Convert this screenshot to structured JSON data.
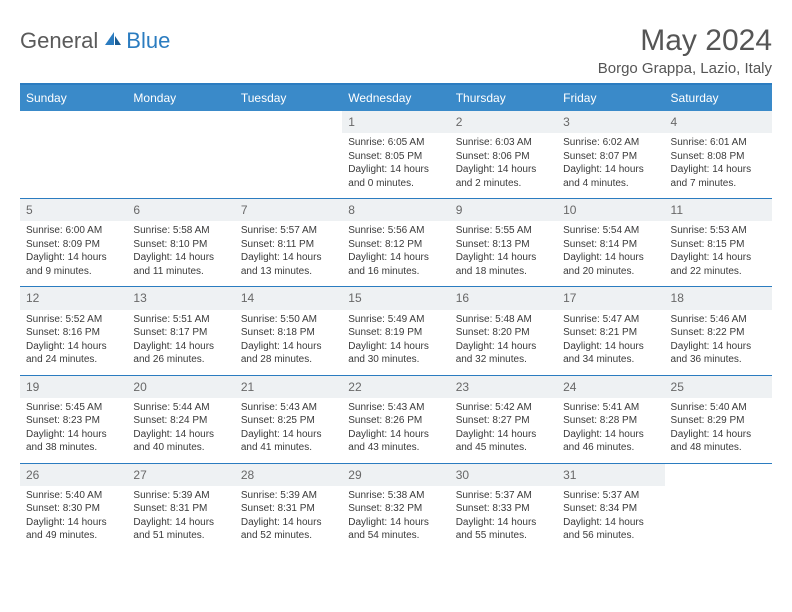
{
  "brand": {
    "part1": "General",
    "part2": "Blue"
  },
  "title": "May 2024",
  "location": "Borgo Grappa, Lazio, Italy",
  "colors": {
    "header_bg": "#3a8ac9",
    "rule": "#2b7cc0",
    "daynum_bg": "#eef1f3",
    "text": "#3a3a3a"
  },
  "day_names": [
    "Sunday",
    "Monday",
    "Tuesday",
    "Wednesday",
    "Thursday",
    "Friday",
    "Saturday"
  ],
  "weeks": [
    [
      {
        "n": "",
        "sr": "",
        "ss": "",
        "dl": ""
      },
      {
        "n": "",
        "sr": "",
        "ss": "",
        "dl": ""
      },
      {
        "n": "",
        "sr": "",
        "ss": "",
        "dl": ""
      },
      {
        "n": "1",
        "sr": "Sunrise: 6:05 AM",
        "ss": "Sunset: 8:05 PM",
        "dl": "Daylight: 14 hours and 0 minutes."
      },
      {
        "n": "2",
        "sr": "Sunrise: 6:03 AM",
        "ss": "Sunset: 8:06 PM",
        "dl": "Daylight: 14 hours and 2 minutes."
      },
      {
        "n": "3",
        "sr": "Sunrise: 6:02 AM",
        "ss": "Sunset: 8:07 PM",
        "dl": "Daylight: 14 hours and 4 minutes."
      },
      {
        "n": "4",
        "sr": "Sunrise: 6:01 AM",
        "ss": "Sunset: 8:08 PM",
        "dl": "Daylight: 14 hours and 7 minutes."
      }
    ],
    [
      {
        "n": "5",
        "sr": "Sunrise: 6:00 AM",
        "ss": "Sunset: 8:09 PM",
        "dl": "Daylight: 14 hours and 9 minutes."
      },
      {
        "n": "6",
        "sr": "Sunrise: 5:58 AM",
        "ss": "Sunset: 8:10 PM",
        "dl": "Daylight: 14 hours and 11 minutes."
      },
      {
        "n": "7",
        "sr": "Sunrise: 5:57 AM",
        "ss": "Sunset: 8:11 PM",
        "dl": "Daylight: 14 hours and 13 minutes."
      },
      {
        "n": "8",
        "sr": "Sunrise: 5:56 AM",
        "ss": "Sunset: 8:12 PM",
        "dl": "Daylight: 14 hours and 16 minutes."
      },
      {
        "n": "9",
        "sr": "Sunrise: 5:55 AM",
        "ss": "Sunset: 8:13 PM",
        "dl": "Daylight: 14 hours and 18 minutes."
      },
      {
        "n": "10",
        "sr": "Sunrise: 5:54 AM",
        "ss": "Sunset: 8:14 PM",
        "dl": "Daylight: 14 hours and 20 minutes."
      },
      {
        "n": "11",
        "sr": "Sunrise: 5:53 AM",
        "ss": "Sunset: 8:15 PM",
        "dl": "Daylight: 14 hours and 22 minutes."
      }
    ],
    [
      {
        "n": "12",
        "sr": "Sunrise: 5:52 AM",
        "ss": "Sunset: 8:16 PM",
        "dl": "Daylight: 14 hours and 24 minutes."
      },
      {
        "n": "13",
        "sr": "Sunrise: 5:51 AM",
        "ss": "Sunset: 8:17 PM",
        "dl": "Daylight: 14 hours and 26 minutes."
      },
      {
        "n": "14",
        "sr": "Sunrise: 5:50 AM",
        "ss": "Sunset: 8:18 PM",
        "dl": "Daylight: 14 hours and 28 minutes."
      },
      {
        "n": "15",
        "sr": "Sunrise: 5:49 AM",
        "ss": "Sunset: 8:19 PM",
        "dl": "Daylight: 14 hours and 30 minutes."
      },
      {
        "n": "16",
        "sr": "Sunrise: 5:48 AM",
        "ss": "Sunset: 8:20 PM",
        "dl": "Daylight: 14 hours and 32 minutes."
      },
      {
        "n": "17",
        "sr": "Sunrise: 5:47 AM",
        "ss": "Sunset: 8:21 PM",
        "dl": "Daylight: 14 hours and 34 minutes."
      },
      {
        "n": "18",
        "sr": "Sunrise: 5:46 AM",
        "ss": "Sunset: 8:22 PM",
        "dl": "Daylight: 14 hours and 36 minutes."
      }
    ],
    [
      {
        "n": "19",
        "sr": "Sunrise: 5:45 AM",
        "ss": "Sunset: 8:23 PM",
        "dl": "Daylight: 14 hours and 38 minutes."
      },
      {
        "n": "20",
        "sr": "Sunrise: 5:44 AM",
        "ss": "Sunset: 8:24 PM",
        "dl": "Daylight: 14 hours and 40 minutes."
      },
      {
        "n": "21",
        "sr": "Sunrise: 5:43 AM",
        "ss": "Sunset: 8:25 PM",
        "dl": "Daylight: 14 hours and 41 minutes."
      },
      {
        "n": "22",
        "sr": "Sunrise: 5:43 AM",
        "ss": "Sunset: 8:26 PM",
        "dl": "Daylight: 14 hours and 43 minutes."
      },
      {
        "n": "23",
        "sr": "Sunrise: 5:42 AM",
        "ss": "Sunset: 8:27 PM",
        "dl": "Daylight: 14 hours and 45 minutes."
      },
      {
        "n": "24",
        "sr": "Sunrise: 5:41 AM",
        "ss": "Sunset: 8:28 PM",
        "dl": "Daylight: 14 hours and 46 minutes."
      },
      {
        "n": "25",
        "sr": "Sunrise: 5:40 AM",
        "ss": "Sunset: 8:29 PM",
        "dl": "Daylight: 14 hours and 48 minutes."
      }
    ],
    [
      {
        "n": "26",
        "sr": "Sunrise: 5:40 AM",
        "ss": "Sunset: 8:30 PM",
        "dl": "Daylight: 14 hours and 49 minutes."
      },
      {
        "n": "27",
        "sr": "Sunrise: 5:39 AM",
        "ss": "Sunset: 8:31 PM",
        "dl": "Daylight: 14 hours and 51 minutes."
      },
      {
        "n": "28",
        "sr": "Sunrise: 5:39 AM",
        "ss": "Sunset: 8:31 PM",
        "dl": "Daylight: 14 hours and 52 minutes."
      },
      {
        "n": "29",
        "sr": "Sunrise: 5:38 AM",
        "ss": "Sunset: 8:32 PM",
        "dl": "Daylight: 14 hours and 54 minutes."
      },
      {
        "n": "30",
        "sr": "Sunrise: 5:37 AM",
        "ss": "Sunset: 8:33 PM",
        "dl": "Daylight: 14 hours and 55 minutes."
      },
      {
        "n": "31",
        "sr": "Sunrise: 5:37 AM",
        "ss": "Sunset: 8:34 PM",
        "dl": "Daylight: 14 hours and 56 minutes."
      },
      {
        "n": "",
        "sr": "",
        "ss": "",
        "dl": ""
      }
    ]
  ]
}
